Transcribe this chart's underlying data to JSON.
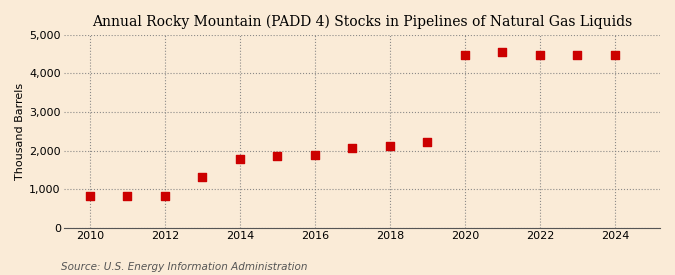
{
  "title": "Annual Rocky Mountain (PADD 4) Stocks in Pipelines of Natural Gas Liquids",
  "ylabel": "Thousand Barrels",
  "source": "Source: U.S. Energy Information Administration",
  "background_color": "#faebd7",
  "marker_color": "#cc0000",
  "years": [
    2010,
    2011,
    2012,
    2013,
    2014,
    2015,
    2016,
    2017,
    2018,
    2019,
    2020,
    2021,
    2022,
    2023,
    2024
  ],
  "values": [
    830,
    840,
    830,
    1320,
    1790,
    1870,
    1890,
    2060,
    2110,
    2230,
    4480,
    4550,
    4480,
    4480,
    4480
  ],
  "ylim": [
    0,
    5000
  ],
  "yticks": [
    0,
    1000,
    2000,
    3000,
    4000,
    5000
  ],
  "ytick_labels": [
    "0",
    "1,000",
    "2,000",
    "3,000",
    "4,000",
    "5,000"
  ],
  "xticks": [
    2010,
    2012,
    2014,
    2016,
    2018,
    2020,
    2022,
    2024
  ],
  "xlim": [
    2009.3,
    2025.2
  ],
  "title_fontsize": 10,
  "axis_label_fontsize": 8,
  "tick_fontsize": 8,
  "source_fontsize": 7.5,
  "marker_size": 28
}
